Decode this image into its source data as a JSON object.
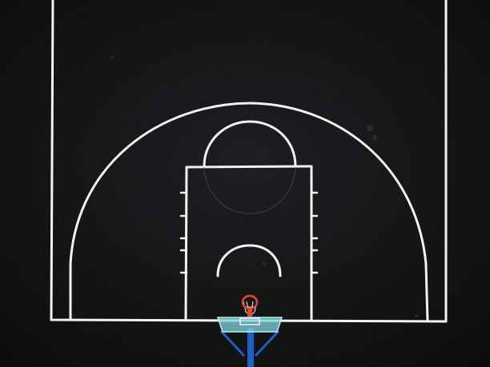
{
  "scene": {
    "surface_color": "#0b0c0e",
    "line_color": "#f2f2f2",
    "paint_guide_color": "#3a3b3d",
    "backboard_color": "#7fd6dd",
    "backboard_frame_color": "#b8eef2",
    "rim_color": "#e2472a",
    "net_color": "#f5f5f5",
    "pole_color": "#1f5fc4"
  }
}
